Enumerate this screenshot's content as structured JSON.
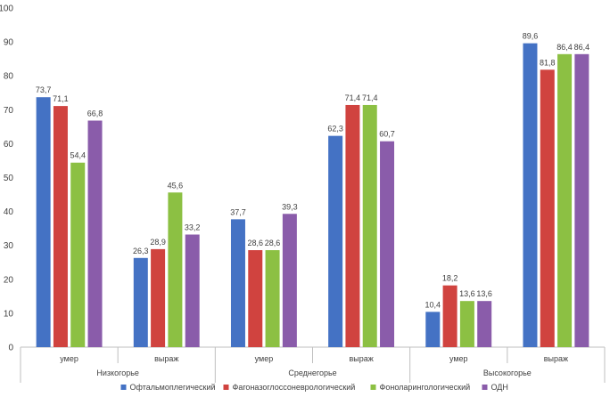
{
  "chart_data": {
    "type": "bar",
    "ylim": [
      0,
      100
    ],
    "yticks": [
      0,
      10,
      20,
      30,
      40,
      50,
      60,
      70,
      80,
      90,
      100
    ],
    "grid": false,
    "legend_position": "bottom",
    "groups": [
      {
        "label": "Низкогорье",
        "subcategories": [
          "умер",
          "выраж"
        ]
      },
      {
        "label": "Среднегорье",
        "subcategories": [
          "умер",
          "выраж"
        ]
      },
      {
        "label": "Высокогорье",
        "subcategories": [
          "умер",
          "выраж"
        ]
      }
    ],
    "categories": [
      "умер",
      "выраж",
      "умер",
      "выраж",
      "умер",
      "выраж"
    ],
    "series": [
      {
        "name": "Офтальмоплегический",
        "color": "#4472C4",
        "values": [
          73.7,
          26.3,
          37.7,
          62.3,
          10.4,
          89.6
        ],
        "labels": [
          "73,7",
          "26,3",
          "37,7",
          "62,3",
          "10,4",
          "89,6"
        ]
      },
      {
        "name": "Фагоназоглоссоневрологический",
        "color": "#D0433F",
        "values": [
          71.1,
          28.9,
          28.6,
          71.4,
          18.2,
          81.8
        ],
        "labels": [
          "71,1",
          "28,9",
          "28,6",
          "71,4",
          "18,2",
          "81,8"
        ]
      },
      {
        "name": "Фоноларингологический",
        "color": "#8CC043",
        "values": [
          54.4,
          45.6,
          28.6,
          71.4,
          13.6,
          86.4
        ],
        "labels": [
          "54,4",
          "45,6",
          "28,6",
          "71,4",
          "13,6",
          "86,4"
        ]
      },
      {
        "name": "ОДН",
        "color": "#8A5CAA",
        "values": [
          66.8,
          33.2,
          39.3,
          60.7,
          13.6,
          86.4
        ],
        "labels": [
          "66,8",
          "33,2",
          "39,3",
          "60,7",
          "13,6",
          "86,4"
        ]
      }
    ]
  }
}
